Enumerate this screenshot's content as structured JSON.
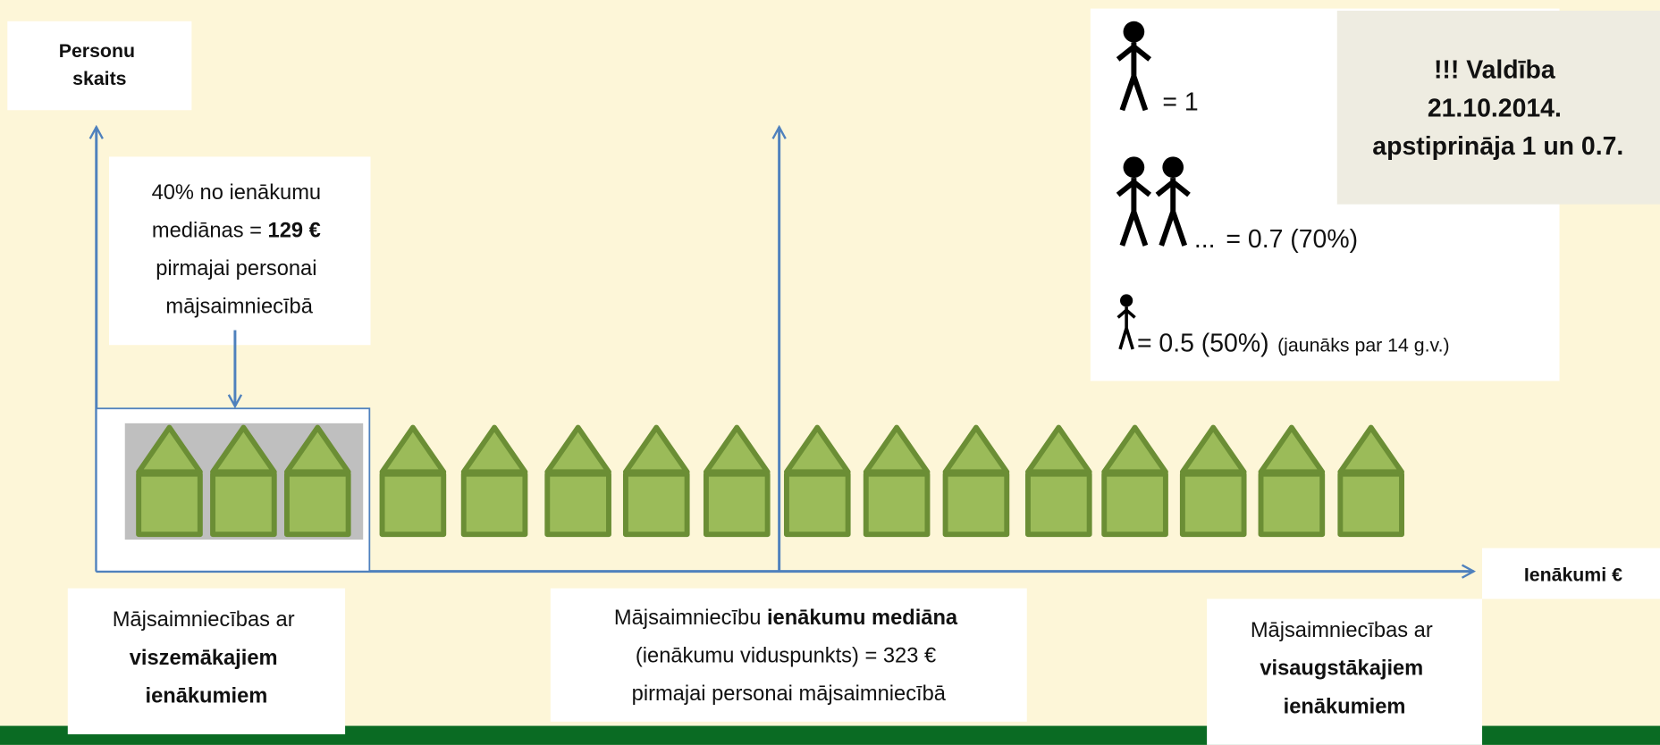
{
  "y_axis_label": {
    "line1": "Personu",
    "line2": "skaits"
  },
  "x_axis_label": "Ienākumi €",
  "threshold_box": {
    "line1": "40% no ienākumu",
    "line2": "mediānas = ",
    "line2_bold": "129 €",
    "line3": "pirmajai personai",
    "line4": "mājsaimniecībā"
  },
  "lowest_box": {
    "line1": "Mājsaimniecības ar",
    "line2_bold": "viszemākajiem",
    "line3_bold": "ienākumiem"
  },
  "median_box": {
    "line1": "Mājsaimniecību ",
    "line1_bold": "ienākumu mediāna",
    "line2": "(ienākumu viduspunkts) = 323 €",
    "line3": "pirmajai personai mājsaimniecībā"
  },
  "highest_box": {
    "line1": "Mājsaimniecības ar",
    "line2_bold": "visaugstākajiem",
    "line3_bold": "ienākumiem"
  },
  "legend": {
    "adult_first": "= 1",
    "adult_other_dots": "...",
    "adult_other": "= 0.7 (70%)",
    "child": "= 0.5 (50%)",
    "child_note": "(jaunāks par 14 g.v.)"
  },
  "notice": {
    "line1": "!!! Valdība",
    "line2": "21.10.2014.",
    "line3": "apstiprināja 1 un 0.7."
  }
}
